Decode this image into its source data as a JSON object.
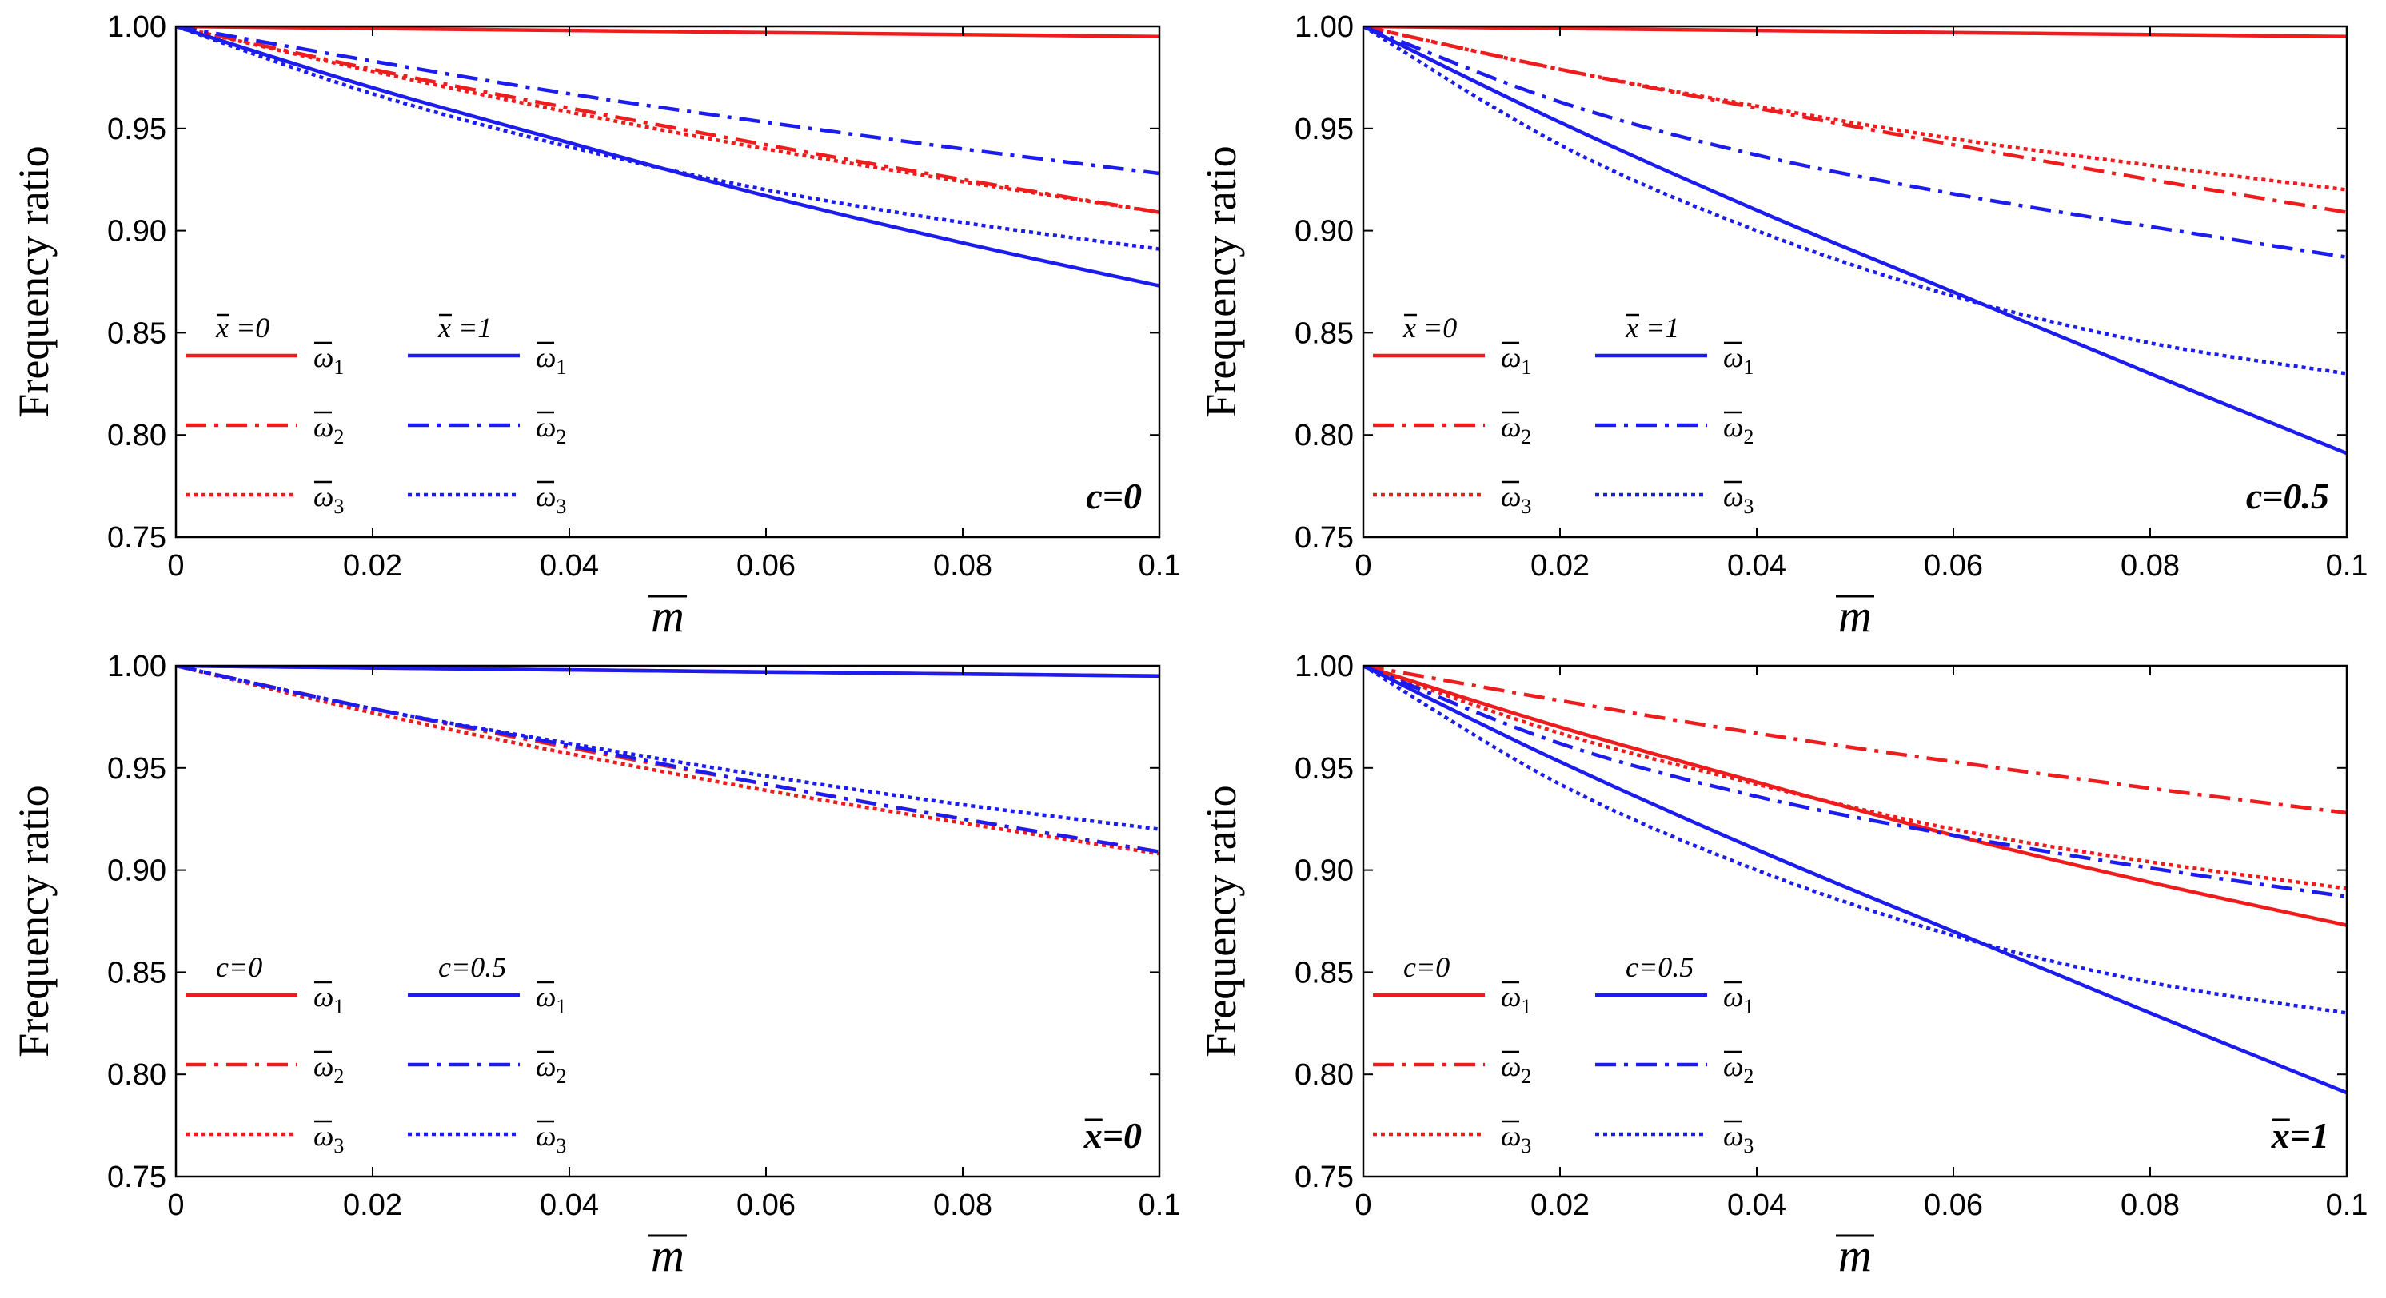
{
  "chart_data": [
    {
      "type": "line",
      "annotation": "c=0",
      "xlabel": "m̅",
      "ylabel": "Frequency ratio",
      "xlim": [
        0,
        0.1
      ],
      "ylim": [
        0.75,
        1.0
      ],
      "xticks": [
        0,
        0.02,
        0.04,
        0.06,
        0.08,
        0.1
      ],
      "xtick_labels": [
        "0",
        "0.02",
        "0.04",
        "0.06",
        "0.08",
        "0.1"
      ],
      "yticks": [
        0.75,
        0.8,
        0.85,
        0.9,
        0.95,
        1.0
      ],
      "ytick_labels": [
        "0.75",
        "0.80",
        "0.85",
        "0.90",
        "0.95",
        "1.00"
      ],
      "legend": {
        "groups": [
          "x̅ =0",
          "x̅ =1"
        ],
        "entries": [
          {
            "label": "ω̅₁",
            "sub": "1"
          },
          {
            "label": "ω̅₂",
            "sub": "2"
          },
          {
            "label": "ω̅₃",
            "sub": "3"
          }
        ]
      },
      "series": [
        {
          "name": "x̅=0 ω̅1",
          "color": "#ee1c1c",
          "dash": "solid",
          "x": [
            0,
            0.02,
            0.04,
            0.06,
            0.08,
            0.1
          ],
          "y": [
            1.0,
            0.999,
            0.998,
            0.997,
            0.996,
            0.995
          ]
        },
        {
          "name": "x̅=0 ω̅2",
          "color": "#ee1c1c",
          "dash": "dashdot",
          "x": [
            0,
            0.02,
            0.04,
            0.06,
            0.08,
            0.1
          ],
          "y": [
            1.0,
            0.979,
            0.96,
            0.942,
            0.925,
            0.909
          ]
        },
        {
          "name": "x̅=0 ω̅3",
          "color": "#ee1c1c",
          "dash": "dotted",
          "x": [
            0,
            0.02,
            0.04,
            0.06,
            0.08,
            0.1
          ],
          "y": [
            1.0,
            0.978,
            0.958,
            0.94,
            0.924,
            0.909
          ]
        },
        {
          "name": "x̅=1 ω̅1",
          "color": "#1c1cee",
          "dash": "solid",
          "x": [
            0,
            0.02,
            0.04,
            0.06,
            0.08,
            0.1
          ],
          "y": [
            1.0,
            0.97,
            0.943,
            0.917,
            0.894,
            0.873
          ]
        },
        {
          "name": "x̅=1 ω̅2",
          "color": "#1c1cee",
          "dash": "dashdot",
          "x": [
            0,
            0.02,
            0.04,
            0.06,
            0.08,
            0.1
          ],
          "y": [
            1.0,
            0.983,
            0.967,
            0.953,
            0.94,
            0.928
          ]
        },
        {
          "name": "x̅=1 ω̅3",
          "color": "#1c1cee",
          "dash": "dotted",
          "x": [
            0,
            0.02,
            0.04,
            0.06,
            0.08,
            0.1
          ],
          "y": [
            1.0,
            0.967,
            0.941,
            0.92,
            0.904,
            0.891
          ]
        }
      ]
    },
    {
      "type": "line",
      "annotation": "c=0.5",
      "xlabel": "m̅",
      "ylabel": "Frequency ratio",
      "xlim": [
        0,
        0.1
      ],
      "ylim": [
        0.75,
        1.0
      ],
      "xticks": [
        0,
        0.02,
        0.04,
        0.06,
        0.08,
        0.1
      ],
      "xtick_labels": [
        "0",
        "0.02",
        "0.04",
        "0.06",
        "0.08",
        "0.1"
      ],
      "yticks": [
        0.75,
        0.8,
        0.85,
        0.9,
        0.95,
        1.0
      ],
      "ytick_labels": [
        "0.75",
        "0.80",
        "0.85",
        "0.90",
        "0.95",
        "1.00"
      ],
      "legend": {
        "groups": [
          "x̅ =0",
          "x̅ =1"
        ],
        "entries": [
          {
            "label": "ω̅₁",
            "sub": "1"
          },
          {
            "label": "ω̅₂",
            "sub": "2"
          },
          {
            "label": "ω̅₃",
            "sub": "3"
          }
        ]
      },
      "series": [
        {
          "name": "x̅=0 ω̅1",
          "color": "#ee1c1c",
          "dash": "solid",
          "x": [
            0,
            0.02,
            0.04,
            0.06,
            0.08,
            0.1
          ],
          "y": [
            1.0,
            0.999,
            0.998,
            0.997,
            0.996,
            0.995
          ]
        },
        {
          "name": "x̅=0 ω̅2",
          "color": "#ee1c1c",
          "dash": "dashdot",
          "x": [
            0,
            0.02,
            0.04,
            0.06,
            0.08,
            0.1
          ],
          "y": [
            1.0,
            0.979,
            0.96,
            0.942,
            0.925,
            0.909
          ]
        },
        {
          "name": "x̅=0 ω̅3",
          "color": "#ee1c1c",
          "dash": "dotted",
          "x": [
            0,
            0.02,
            0.04,
            0.06,
            0.08,
            0.1
          ],
          "y": [
            1.0,
            0.979,
            0.961,
            0.945,
            0.932,
            0.92
          ]
        },
        {
          "name": "x̅=1 ω̅1",
          "color": "#1c1cee",
          "dash": "solid",
          "x": [
            0,
            0.02,
            0.04,
            0.06,
            0.08,
            0.1
          ],
          "y": [
            1.0,
            0.953,
            0.91,
            0.87,
            0.83,
            0.791
          ]
        },
        {
          "name": "x̅=1 ω̅2",
          "color": "#1c1cee",
          "dash": "dashdot",
          "x": [
            0,
            0.02,
            0.04,
            0.06,
            0.08,
            0.1
          ],
          "y": [
            1.0,
            0.963,
            0.937,
            0.918,
            0.902,
            0.887
          ]
        },
        {
          "name": "x̅=1 ω̅3",
          "color": "#1c1cee",
          "dash": "dotted",
          "x": [
            0,
            0.02,
            0.04,
            0.06,
            0.08,
            0.1
          ],
          "y": [
            1.0,
            0.942,
            0.9,
            0.868,
            0.845,
            0.83
          ]
        }
      ]
    },
    {
      "type": "line",
      "annotation": "x̅=0",
      "xlabel": "m̅",
      "ylabel": "Frequency ratio",
      "xlim": [
        0,
        0.1
      ],
      "ylim": [
        0.75,
        1.0
      ],
      "xticks": [
        0,
        0.02,
        0.04,
        0.06,
        0.08,
        0.1
      ],
      "xtick_labels": [
        "0",
        "0.02",
        "0.04",
        "0.06",
        "0.08",
        "0.1"
      ],
      "yticks": [
        0.75,
        0.8,
        0.85,
        0.9,
        0.95,
        1.0
      ],
      "ytick_labels": [
        "0.75",
        "0.80",
        "0.85",
        "0.90",
        "0.95",
        "1.00"
      ],
      "legend": {
        "groups": [
          "c=0",
          "c=0.5"
        ],
        "entries": [
          {
            "label": "ω̅₁",
            "sub": "1"
          },
          {
            "label": "ω̅₂",
            "sub": "2"
          },
          {
            "label": "ω̅₃",
            "sub": "3"
          }
        ]
      },
      "series": [
        {
          "name": "c=0 ω̅1",
          "color": "#ee1c1c",
          "dash": "solid",
          "x": [
            0,
            0.02,
            0.04,
            0.06,
            0.08,
            0.1
          ],
          "y": [
            1.0,
            0.999,
            0.998,
            0.997,
            0.996,
            0.995
          ]
        },
        {
          "name": "c=0 ω̅2",
          "color": "#ee1c1c",
          "dash": "dashdot",
          "x": [
            0,
            0.02,
            0.04,
            0.06,
            0.08,
            0.1
          ],
          "y": [
            1.0,
            0.979,
            0.96,
            0.942,
            0.925,
            0.909
          ]
        },
        {
          "name": "c=0 ω̅3",
          "color": "#ee1c1c",
          "dash": "dotted",
          "x": [
            0,
            0.02,
            0.04,
            0.06,
            0.08,
            0.1
          ],
          "y": [
            1.0,
            0.977,
            0.957,
            0.939,
            0.923,
            0.908
          ]
        },
        {
          "name": "c=0.5 ω̅1",
          "color": "#1c1cee",
          "dash": "solid",
          "x": [
            0,
            0.02,
            0.04,
            0.06,
            0.08,
            0.1
          ],
          "y": [
            1.0,
            0.999,
            0.998,
            0.997,
            0.996,
            0.995
          ]
        },
        {
          "name": "c=0.5 ω̅2",
          "color": "#1c1cee",
          "dash": "dashdot",
          "x": [
            0,
            0.02,
            0.04,
            0.06,
            0.08,
            0.1
          ],
          "y": [
            1.0,
            0.979,
            0.961,
            0.942,
            0.925,
            0.909
          ]
        },
        {
          "name": "c=0.5 ω̅3",
          "color": "#1c1cee",
          "dash": "dotted",
          "x": [
            0,
            0.02,
            0.04,
            0.06,
            0.08,
            0.1
          ],
          "y": [
            1.0,
            0.979,
            0.962,
            0.946,
            0.932,
            0.92
          ]
        }
      ]
    },
    {
      "type": "line",
      "annotation": "x̅=1",
      "xlabel": "m̅",
      "ylabel": "Frequency ratio",
      "xlim": [
        0,
        0.1
      ],
      "ylim": [
        0.75,
        1.0
      ],
      "xticks": [
        0,
        0.02,
        0.04,
        0.06,
        0.08,
        0.1
      ],
      "xtick_labels": [
        "0",
        "0.02",
        "0.04",
        "0.06",
        "0.08",
        "0.1"
      ],
      "yticks": [
        0.75,
        0.8,
        0.85,
        0.9,
        0.95,
        1.0
      ],
      "ytick_labels": [
        "0.75",
        "0.80",
        "0.85",
        "0.90",
        "0.95",
        "1.00"
      ],
      "legend": {
        "groups": [
          "c=0",
          "c=0.5"
        ],
        "entries": [
          {
            "label": "ω̅₁",
            "sub": "1"
          },
          {
            "label": "ω̅₂",
            "sub": "2"
          },
          {
            "label": "ω̅₃",
            "sub": "3"
          }
        ]
      },
      "series": [
        {
          "name": "c=0 ω̅1",
          "color": "#ee1c1c",
          "dash": "solid",
          "x": [
            0,
            0.02,
            0.04,
            0.06,
            0.08,
            0.1
          ],
          "y": [
            1.0,
            0.97,
            0.943,
            0.917,
            0.894,
            0.873
          ]
        },
        {
          "name": "c=0 ω̅2",
          "color": "#ee1c1c",
          "dash": "dashdot",
          "x": [
            0,
            0.02,
            0.04,
            0.06,
            0.08,
            0.1
          ],
          "y": [
            1.0,
            0.983,
            0.967,
            0.953,
            0.94,
            0.928
          ]
        },
        {
          "name": "c=0 ω̅3",
          "color": "#ee1c1c",
          "dash": "dotted",
          "x": [
            0,
            0.02,
            0.04,
            0.06,
            0.08,
            0.1
          ],
          "y": [
            1.0,
            0.967,
            0.942,
            0.92,
            0.904,
            0.891
          ]
        },
        {
          "name": "c=0.5 ω̅1",
          "color": "#1c1cee",
          "dash": "solid",
          "x": [
            0,
            0.02,
            0.04,
            0.06,
            0.08,
            0.1
          ],
          "y": [
            1.0,
            0.953,
            0.91,
            0.87,
            0.83,
            0.791
          ]
        },
        {
          "name": "c=0.5 ω̅2",
          "color": "#1c1cee",
          "dash": "dashdot",
          "x": [
            0,
            0.02,
            0.04,
            0.06,
            0.08,
            0.1
          ],
          "y": [
            1.0,
            0.962,
            0.936,
            0.917,
            0.901,
            0.887
          ]
        },
        {
          "name": "c=0.5 ω̅3",
          "color": "#1c1cee",
          "dash": "dotted",
          "x": [
            0,
            0.02,
            0.04,
            0.06,
            0.08,
            0.1
          ],
          "y": [
            1.0,
            0.942,
            0.9,
            0.868,
            0.845,
            0.83
          ]
        }
      ]
    }
  ]
}
